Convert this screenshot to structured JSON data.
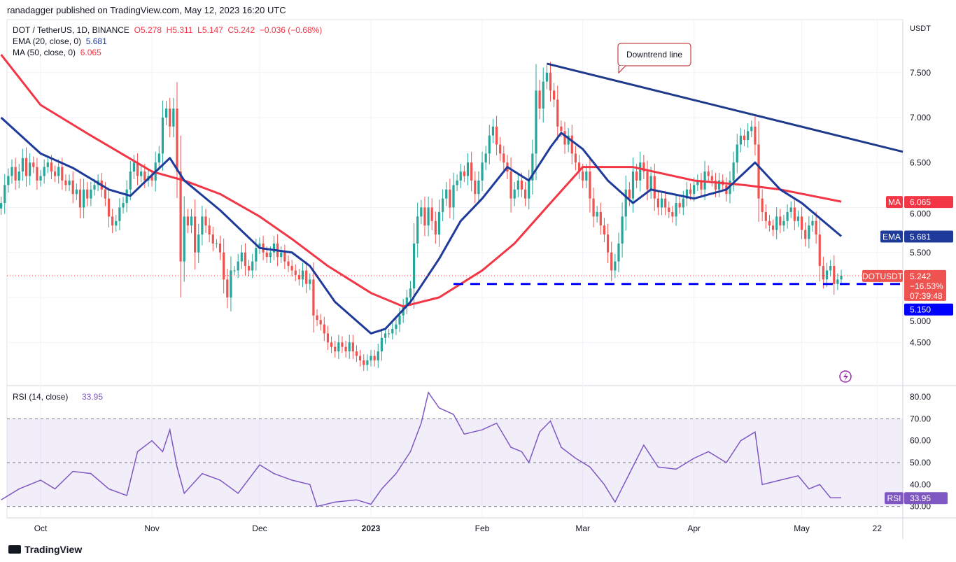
{
  "header": {
    "published": "ranadagger published on TradingView.com, May 12, 2023 16:20 UTC"
  },
  "legend": {
    "symbol": "DOT / TetherUS, 1D, BINANCE",
    "o": "O5.278",
    "h": "H5.311",
    "l": "L5.147",
    "c": "C5.242",
    "change": "−0.036 (−0.68%)",
    "ema_label": "EMA (20, close, 0)",
    "ema_value": "5.681",
    "ma_label": "MA (50, close, 0)",
    "ma_value": "6.065",
    "rsi_label": "RSI (14, close)",
    "rsi_value": "33.95"
  },
  "colors": {
    "up": "#26a69a",
    "down": "#ef5350",
    "ema": "#1e3a9a",
    "ma": "#f23645",
    "rsi": "#7e57c2",
    "trend": "#1e3a8a",
    "support": "#0000ff"
  },
  "axis": {
    "currency": "USDT",
    "price_ticks": [
      "7.500",
      "7.000",
      "6.500",
      "6.000",
      "5.500",
      "5.000",
      "4.500"
    ],
    "rsi_ticks": [
      "80.00",
      "70.00",
      "60.00",
      "50.00",
      "40.00",
      "30.00"
    ],
    "time_labels": [
      {
        "date": "2022-10-01",
        "label": "Oct"
      },
      {
        "date": "2022-11-01",
        "label": "Nov"
      },
      {
        "date": "2022-12-01",
        "label": "Dec"
      },
      {
        "date": "2023-01-01",
        "label": "2023"
      },
      {
        "date": "2023-02-01",
        "label": "Feb"
      },
      {
        "date": "2023-03-01",
        "label": "Mar"
      },
      {
        "date": "2023-04-01",
        "label": "Apr"
      },
      {
        "date": "2023-05-01",
        "label": "May"
      },
      {
        "date": "2023-05-22",
        "label": "22"
      }
    ]
  },
  "badges": {
    "ma_tag": "MA",
    "ma": "6.065",
    "ema_tag": "EMA",
    "ema": "5.681",
    "sym": "DOTUSDT",
    "price": "5.242",
    "pct": "−16.53%",
    "timer": "07:39:48",
    "support": "5.150",
    "rsi_tag": "RSI",
    "rsi": "33.95"
  },
  "annotation": {
    "text": "Downtrend line"
  },
  "footer": {
    "brand": "TradingView"
  },
  "chart_data": {
    "type": "candlestick",
    "start_date": "2022-09-20",
    "price_range": [
      4.15,
      7.9
    ],
    "closes": [
      6.05,
      6.25,
      6.35,
      6.45,
      6.3,
      6.4,
      6.55,
      6.35,
      6.5,
      6.45,
      6.3,
      6.35,
      6.45,
      6.5,
      6.4,
      6.35,
      6.45,
      6.3,
      6.25,
      6.3,
      6.15,
      6.2,
      6.0,
      6.2,
      6.1,
      6.2,
      6.25,
      6.3,
      6.2,
      6.1,
      5.9,
      5.8,
      5.85,
      6.0,
      6.05,
      6.2,
      6.4,
      6.5,
      6.35,
      6.4,
      6.3,
      6.35,
      6.3,
      6.5,
      6.6,
      7.0,
      7.1,
      6.9,
      7.1,
      6.4,
      5.4,
      5.9,
      5.8,
      5.9,
      5.5,
      5.7,
      5.9,
      5.8,
      5.7,
      5.6,
      5.6,
      5.5,
      5.2,
      5.0,
      5.3,
      5.3,
      5.4,
      5.5,
      5.35,
      5.3,
      5.4,
      5.55,
      5.6,
      5.5,
      5.45,
      5.5,
      5.6,
      5.45,
      5.5,
      5.4,
      5.35,
      5.3,
      5.25,
      5.2,
      5.3,
      5.15,
      5.2,
      4.8,
      4.75,
      4.7,
      4.6,
      4.5,
      4.45,
      4.4,
      4.5,
      4.45,
      4.4,
      4.5,
      4.4,
      4.35,
      4.3,
      4.25,
      4.3,
      4.35,
      4.3,
      4.4,
      4.55,
      4.6,
      4.6,
      4.65,
      4.7,
      4.8,
      4.9,
      5.0,
      5.1,
      5.6,
      5.9,
      6.0,
      5.8,
      6.0,
      5.85,
      5.7,
      5.95,
      6.1,
      6.2,
      6.0,
      6.25,
      6.3,
      6.4,
      6.35,
      6.5,
      6.3,
      6.15,
      6.3,
      6.5,
      6.6,
      6.8,
      6.9,
      6.7,
      6.6,
      6.5,
      6.4,
      6.1,
      6.2,
      6.3,
      6.2,
      6.1,
      6.3,
      6.6,
      7.3,
      7.1,
      7.4,
      7.5,
      7.3,
      7.2,
      6.9,
      6.85,
      6.7,
      6.8,
      6.6,
      6.5,
      6.4,
      6.3,
      6.4,
      6.1,
      5.9,
      5.95,
      5.8,
      5.7,
      5.5,
      5.3,
      5.4,
      5.6,
      5.9,
      6.2,
      6.1,
      6.4,
      6.3,
      6.5,
      6.4,
      6.2,
      6.35,
      6.1,
      6.0,
      6.1,
      6.0,
      5.95,
      5.9,
      6.05,
      6.0,
      6.1,
      6.2,
      6.15,
      6.25,
      6.3,
      6.2,
      6.4,
      6.35,
      6.3,
      6.2,
      6.3,
      6.25,
      6.15,
      6.3,
      6.5,
      6.7,
      6.8,
      6.75,
      6.85,
      6.9,
      6.7,
      6.1,
      5.95,
      5.85,
      5.8,
      5.75,
      5.9,
      5.8,
      5.85,
      5.95,
      6.0,
      5.85,
      5.9,
      5.75,
      5.65,
      5.8,
      5.85,
      5.7,
      5.35,
      5.2,
      5.3,
      5.35,
      5.15,
      5.2,
      5.242
    ],
    "ema20": [
      [
        "2022-09-20",
        7.0
      ],
      [
        "2022-10-01",
        6.6
      ],
      [
        "2022-10-10",
        6.44
      ],
      [
        "2022-10-20",
        6.2
      ],
      [
        "2022-10-26",
        6.13
      ],
      [
        "2022-11-01",
        6.36
      ],
      [
        "2022-11-06",
        6.55
      ],
      [
        "2022-11-10",
        6.3
      ],
      [
        "2022-11-20",
        5.97
      ],
      [
        "2022-12-01",
        5.55
      ],
      [
        "2022-12-10",
        5.5
      ],
      [
        "2022-12-15",
        5.35
      ],
      [
        "2022-12-22",
        4.95
      ],
      [
        "2023-01-01",
        4.6
      ],
      [
        "2023-01-05",
        4.65
      ],
      [
        "2023-01-12",
        4.95
      ],
      [
        "2023-01-20",
        5.43
      ],
      [
        "2023-01-26",
        5.85
      ],
      [
        "2023-02-01",
        6.1
      ],
      [
        "2023-02-08",
        6.45
      ],
      [
        "2023-02-14",
        6.3
      ],
      [
        "2023-02-20",
        6.67
      ],
      [
        "2023-02-23",
        6.83
      ],
      [
        "2023-03-01",
        6.65
      ],
      [
        "2023-03-08",
        6.3
      ],
      [
        "2023-03-15",
        6.05
      ],
      [
        "2023-03-20",
        6.2
      ],
      [
        "2023-04-01",
        6.1
      ],
      [
        "2023-04-10",
        6.2
      ],
      [
        "2023-04-18",
        6.5
      ],
      [
        "2023-04-25",
        6.2
      ],
      [
        "2023-05-01",
        6.05
      ],
      [
        "2023-05-12",
        5.681
      ]
    ],
    "ma50": [
      [
        "2022-09-20",
        7.7
      ],
      [
        "2022-10-01",
        7.14
      ],
      [
        "2022-10-15",
        6.8
      ],
      [
        "2022-11-01",
        6.4
      ],
      [
        "2022-11-10",
        6.3
      ],
      [
        "2022-11-20",
        6.15
      ],
      [
        "2022-12-01",
        5.9
      ],
      [
        "2022-12-10",
        5.65
      ],
      [
        "2022-12-20",
        5.35
      ],
      [
        "2023-01-01",
        5.05
      ],
      [
        "2023-01-10",
        4.9
      ],
      [
        "2023-01-20",
        5.0
      ],
      [
        "2023-02-01",
        5.3
      ],
      [
        "2023-02-10",
        5.6
      ],
      [
        "2023-02-20",
        6.05
      ],
      [
        "2023-03-01",
        6.45
      ],
      [
        "2023-03-15",
        6.45
      ],
      [
        "2023-04-01",
        6.3
      ],
      [
        "2023-04-15",
        6.25
      ],
      [
        "2023-04-25",
        6.2
      ],
      [
        "2023-05-12",
        6.065
      ]
    ],
    "rsi": [
      [
        "2022-09-20",
        33
      ],
      [
        "2022-09-25",
        38
      ],
      [
        "2022-10-01",
        42
      ],
      [
        "2022-10-05",
        38
      ],
      [
        "2022-10-10",
        46
      ],
      [
        "2022-10-15",
        45
      ],
      [
        "2022-10-20",
        38
      ],
      [
        "2022-10-25",
        35
      ],
      [
        "2022-10-28",
        55
      ],
      [
        "2022-11-01",
        60
      ],
      [
        "2022-11-04",
        55
      ],
      [
        "2022-11-06",
        65
      ],
      [
        "2022-11-08",
        48
      ],
      [
        "2022-11-10",
        36
      ],
      [
        "2022-11-15",
        45
      ],
      [
        "2022-11-20",
        42
      ],
      [
        "2022-11-25",
        36
      ],
      [
        "2022-12-01",
        49
      ],
      [
        "2022-12-05",
        45
      ],
      [
        "2022-12-10",
        42
      ],
      [
        "2022-12-15",
        40
      ],
      [
        "2022-12-17",
        30
      ],
      [
        "2022-12-22",
        32
      ],
      [
        "2022-12-28",
        33
      ],
      [
        "2023-01-01",
        31
      ],
      [
        "2023-01-04",
        38
      ],
      [
        "2023-01-08",
        45
      ],
      [
        "2023-01-12",
        55
      ],
      [
        "2023-01-15",
        68
      ],
      [
        "2023-01-17",
        82
      ],
      [
        "2023-01-20",
        75
      ],
      [
        "2023-01-24",
        72
      ],
      [
        "2023-01-27",
        63
      ],
      [
        "2023-02-01",
        65
      ],
      [
        "2023-02-05",
        68
      ],
      [
        "2023-02-09",
        57
      ],
      [
        "2023-02-12",
        55
      ],
      [
        "2023-02-14",
        50
      ],
      [
        "2023-02-17",
        64
      ],
      [
        "2023-02-20",
        69
      ],
      [
        "2023-02-23",
        57
      ],
      [
        "2023-02-27",
        52
      ],
      [
        "2023-03-03",
        48
      ],
      [
        "2023-03-07",
        40
      ],
      [
        "2023-03-10",
        32
      ],
      [
        "2023-03-14",
        45
      ],
      [
        "2023-03-18",
        58
      ],
      [
        "2023-03-22",
        48
      ],
      [
        "2023-03-27",
        47
      ],
      [
        "2023-04-01",
        52
      ],
      [
        "2023-04-05",
        55
      ],
      [
        "2023-04-10",
        50
      ],
      [
        "2023-04-14",
        60
      ],
      [
        "2023-04-18",
        64
      ],
      [
        "2023-04-20",
        40
      ],
      [
        "2023-04-25",
        42
      ],
      [
        "2023-04-30",
        44
      ],
      [
        "2023-05-03",
        38
      ],
      [
        "2023-05-06",
        40
      ],
      [
        "2023-05-09",
        34
      ],
      [
        "2023-05-12",
        33.95
      ]
    ],
    "rsi_range": [
      27,
      85
    ],
    "rsi_band": [
      30,
      70
    ],
    "downtrend": [
      [
        "2023-02-19",
        7.6
      ],
      [
        "2023-05-22",
        6.62
      ]
    ],
    "support": {
      "from": "2023-01-24",
      "value": 5.15
    }
  }
}
